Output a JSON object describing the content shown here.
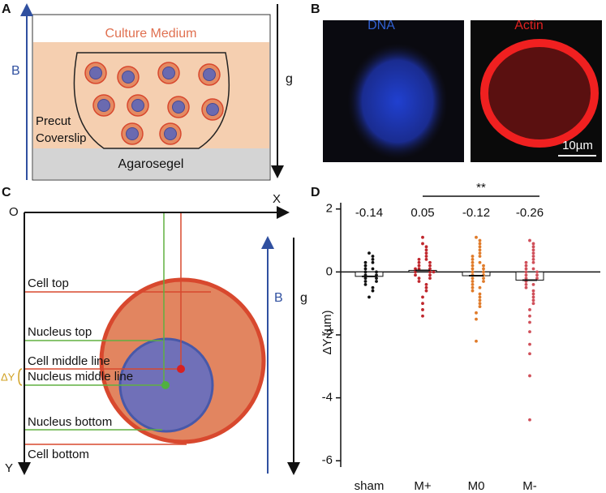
{
  "panel_labels": [
    "A",
    "B",
    "C",
    "D"
  ],
  "panel_a": {
    "medium": "Culture Medium",
    "coverslip": [
      "Precut",
      "Coverslip"
    ],
    "gel": "Agarosegel",
    "field": "B",
    "gravity": "g"
  },
  "panel_b": {
    "dna": "DNA",
    "actin": "Actin",
    "scale": "10µm"
  },
  "panel_c": {
    "origin": "O",
    "x_axis": "X",
    "y_axis": "Y",
    "field": "B",
    "gravity": "g",
    "delta": "ΔY",
    "lines": [
      "Cell top",
      "Nucleus top",
      "Cell middle line",
      "Nucleus middle line",
      "Nucleus bottom",
      "Cell bottom"
    ]
  },
  "chart_data": {
    "type": "strip",
    "ylabel": "ΔY (µm)",
    "annotation": "**",
    "categories": [
      "sham",
      "M+",
      "M0",
      "M-"
    ],
    "means": [
      -0.14,
      0.05,
      -0.12,
      -0.26
    ],
    "colors": [
      "#111111",
      "#c0272d",
      "#e07b2a",
      "#d0505a"
    ],
    "points": [
      [
        0.6,
        0.5,
        0.4,
        0.3,
        0.3,
        0.2,
        0.1,
        0.1,
        0,
        0,
        -0.1,
        -0.1,
        -0.2,
        -0.2,
        -0.3,
        -0.3,
        -0.4,
        -0.5,
        -0.6,
        -0.8
      ],
      [
        1.1,
        0.9,
        0.8,
        0.7,
        0.6,
        0.5,
        0.4,
        0.4,
        0.3,
        0.3,
        0.2,
        0.2,
        0.1,
        0.1,
        0.1,
        0,
        0,
        0,
        -0.1,
        -0.1,
        -0.2,
        -0.2,
        -0.3,
        -0.4,
        -0.5,
        -0.6,
        -0.8,
        -1.0,
        -1.2,
        -1.4
      ],
      [
        1.1,
        1.0,
        0.9,
        0.8,
        0.7,
        0.6,
        0.5,
        0.5,
        0.4,
        0.3,
        0.3,
        0.2,
        0.2,
        0.1,
        0.1,
        0,
        0,
        -0.1,
        -0.1,
        -0.2,
        -0.2,
        -0.3,
        -0.3,
        -0.4,
        -0.5,
        -0.5,
        -0.6,
        -0.7,
        -0.8,
        -0.9,
        -1.0,
        -1.1,
        -1.3,
        -1.5,
        -2.2
      ],
      [
        1.0,
        0.9,
        0.8,
        0.7,
        0.6,
        0.5,
        0.4,
        0.3,
        0.3,
        0.2,
        0.1,
        0.1,
        0,
        0,
        -0.1,
        -0.1,
        -0.2,
        -0.2,
        -0.3,
        -0.4,
        -0.4,
        -0.5,
        -0.6,
        -0.7,
        -0.8,
        -0.9,
        -1.0,
        -1.2,
        -1.4,
        -1.6,
        -1.9,
        -2.3,
        -2.6,
        -3.3,
        -4.7
      ]
    ],
    "ylim": [
      -6.2,
      2.2
    ],
    "yticks": [
      2,
      0,
      -2,
      -4,
      -6
    ]
  }
}
